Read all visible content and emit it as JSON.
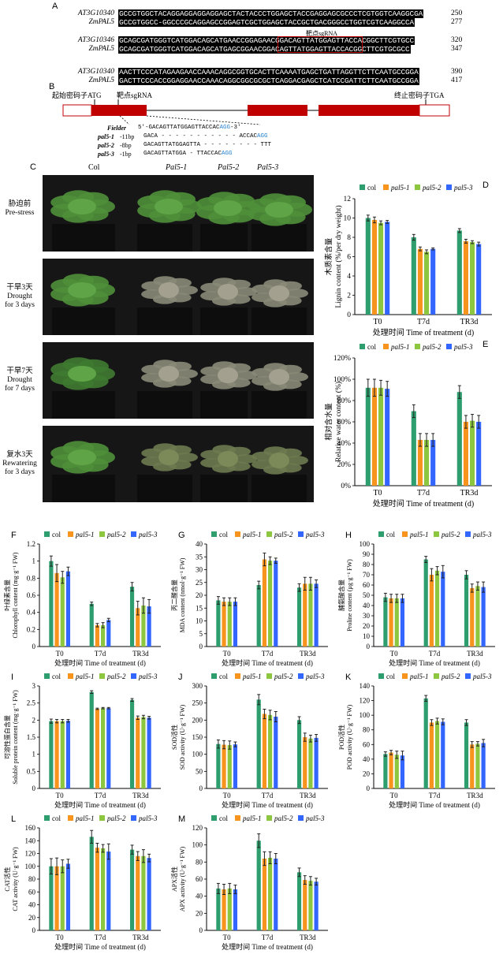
{
  "panelA": {
    "label": "A",
    "blocks": [
      {
        "rows": [
          {
            "gene": "AT3G10340",
            "seq": "GCCGTGGCTACAGGAGGAGGAGGAGCTACTACCCTGGAGCTACCGAGGAGCGCCCTCGTGGTCAAGGCGA",
            "end": "250"
          },
          {
            "gene": "ZmPAL5",
            "seq": "GCCGTGGCC-GGCCCGCAGGAGCCGGAGTCGCTGGAGCTACCGCTGACGGGCCTGGTCGTCAAGGCCA",
            "end": "277"
          }
        ],
        "note": ""
      },
      {
        "rows": [
          {
            "gene": "AT3G10346",
            "seq": "GCAGCGATGGGTCATGGACAGCATGAACCGGAGAACGGACAGTTATGGAGTTACCACGGCTTCGTGCC",
            "end": "320"
          },
          {
            "gene": "ZmPAL5",
            "seq": "GCAGCGATGGGTCATGGACAGCATGAGCGGAACGGACAGTTATGGAGTTACCACGGCTTCGTGCGCC",
            "end": "347"
          }
        ],
        "note": "靶点sgRNA"
      },
      {
        "rows": [
          {
            "gene": "AT3G10340",
            "seq": "AACTTCCCATAGAAGAACCAAACAGGCGGTGCACTTCAAAATGAGCTGATTAGGTTCTTCAATGCCGGA",
            "end": "390"
          },
          {
            "gene": "ZmPAL5",
            "seq": "GACTTCCCACCGGAGGAACCAAACAGGCGGCGCGCTCAGGACGAGCTCATCCGATTCTTCAATGCCGGA",
            "end": "417"
          }
        ],
        "note": ""
      }
    ]
  },
  "panelB": {
    "label": "B",
    "start_codon": "起始密码子ATG",
    "target": "靶点sgRNA",
    "stop_codon": "终止密码子TGA",
    "alleles": [
      {
        "name": "Fielder",
        "del": "",
        "seq": "5'-GACAGTTATGGAGTTACCAC",
        "pam": "AGG",
        "tail": "-3'"
      },
      {
        "name": "pal5-1",
        "del": "-11bp",
        "seq": "GACA - - - - - - - - - - - ACCAC",
        "pam": "AGG",
        "tail": ""
      },
      {
        "name": "pal5-2",
        "del": "-8bp",
        "seq": "GACAGTTATGGAGTTA - - - - - - - - TTT",
        "pam": "",
        "tail": ""
      },
      {
        "name": "pal5-3",
        "del": "-1bp",
        "seq": "GACAGTTATGGA - TTACCAC",
        "pam": "AGG",
        "tail": ""
      }
    ]
  },
  "panelC": {
    "label": "C",
    "genotypes": [
      "Col",
      "Pal5-1",
      "Pal5-2",
      "Pal5-3"
    ],
    "conditions": [
      {
        "cn": "胁迫前",
        "en": "Pre-stress",
        "en2": ""
      },
      {
        "cn": "干旱3天",
        "en": "Drought",
        "en2": "for 3 days"
      },
      {
        "cn": "干旱7天",
        "en": "Drought",
        "en2": "for 7 days"
      },
      {
        "cn": "复水3天",
        "en": "Rewatering",
        "en2": "for 3 days"
      }
    ]
  },
  "colors": {
    "col": "#2e9e6e",
    "pal5_1": "#f7941d",
    "pal5_2": "#8dc63f",
    "pal5_3": "#3366ff",
    "gene_box": "#c00000"
  },
  "chart_data": [
    {
      "panel": "D",
      "type": "bar",
      "categories": [
        "T0",
        "T7d",
        "TR3d"
      ],
      "ylim": [
        0,
        12
      ],
      "ticks": [
        0,
        2,
        4,
        6,
        8,
        10,
        12
      ],
      "ylabel_cn": "木质素含量",
      "ylabel_en": "Lignin content (%/per dry weight)",
      "xlabel": "处理时间 Time of treatment (d)",
      "series": [
        {
          "name": "col",
          "values": [
            10.0,
            8.0,
            8.7
          ],
          "err": [
            0.3,
            0.3,
            0.2
          ]
        },
        {
          "name": "pal5-1",
          "values": [
            9.8,
            6.8,
            7.6
          ],
          "err": [
            0.3,
            0.2,
            0.2
          ]
        },
        {
          "name": "pal5-2",
          "values": [
            9.5,
            6.5,
            7.5
          ],
          "err": [
            0.2,
            0.2,
            0.15
          ]
        },
        {
          "name": "pal5-3",
          "values": [
            9.6,
            6.8,
            7.3
          ],
          "err": [
            0.15,
            0.1,
            0.2
          ]
        }
      ]
    },
    {
      "panel": "E",
      "type": "bar",
      "categories": [
        "T0",
        "T7d",
        "TR3d"
      ],
      "ylim": [
        0,
        120
      ],
      "ticks": [
        0,
        20,
        40,
        60,
        80,
        100,
        120
      ],
      "tick_suffix": "%",
      "ylabel_cn": "相对含水量",
      "ylabel_en": "Relative water content (%)",
      "xlabel": "处理时间 Time of treatment (d)",
      "series": [
        {
          "name": "col",
          "values": [
            92,
            70,
            88
          ],
          "err": [
            8,
            6,
            6
          ]
        },
        {
          "name": "pal5-1",
          "values": [
            92,
            43,
            60
          ],
          "err": [
            8,
            6,
            6
          ]
        },
        {
          "name": "pal5-2",
          "values": [
            92,
            43,
            61
          ],
          "err": [
            7,
            6,
            6
          ]
        },
        {
          "name": "pal5-3",
          "values": [
            91,
            43,
            60
          ],
          "err": [
            7,
            6,
            6
          ]
        }
      ]
    },
    {
      "panel": "F",
      "type": "bar",
      "categories": [
        "T0",
        "T7d",
        "TR3d"
      ],
      "ylim": [
        0,
        1.2
      ],
      "ticks": [
        0,
        0.2,
        0.4,
        0.6,
        0.8,
        1.0,
        1.2
      ],
      "ylabel_cn": "叶绿素含量",
      "ylabel_en": "Chlorophyll content (mg·g⁻¹ FW)",
      "xlabel": "处理时间 Time of treatment (d)",
      "series": [
        {
          "name": "col",
          "values": [
            1.0,
            0.5,
            0.7
          ],
          "err": [
            0.06,
            0.02,
            0.05
          ]
        },
        {
          "name": "pal5-1",
          "values": [
            0.86,
            0.25,
            0.45
          ],
          "err": [
            0.1,
            0.02,
            0.08
          ]
        },
        {
          "name": "pal5-2",
          "values": [
            0.81,
            0.25,
            0.48
          ],
          "err": [
            0.07,
            0.03,
            0.09
          ]
        },
        {
          "name": "pal5-3",
          "values": [
            0.88,
            0.31,
            0.47
          ],
          "err": [
            0.05,
            0.02,
            0.08
          ]
        }
      ]
    },
    {
      "panel": "G",
      "type": "bar",
      "categories": [
        "T0",
        "T7d",
        "TR3d"
      ],
      "ylim": [
        0,
        40
      ],
      "ticks": [
        0,
        5,
        10,
        15,
        20,
        25,
        30,
        35,
        40
      ],
      "ylabel_cn": "丙二醛含量",
      "ylabel_en": "MDA content (nmol·g⁻¹ FW)",
      "xlabel": "处理时间 Time of treatment (d)",
      "series": [
        {
          "name": "col",
          "values": [
            18,
            24,
            23
          ],
          "err": [
            1.5,
            1.5,
            1.5
          ]
        },
        {
          "name": "pal5-1",
          "values": [
            17.5,
            34,
            24.5
          ],
          "err": [
            1.5,
            2.5,
            2.5
          ]
        },
        {
          "name": "pal5-2",
          "values": [
            17.5,
            33.5,
            24.5
          ],
          "err": [
            1.5,
            1.5,
            2.5
          ]
        },
        {
          "name": "pal5-3",
          "values": [
            17.5,
            33.5,
            24.5
          ],
          "err": [
            1.5,
            1,
            1.5
          ]
        }
      ]
    },
    {
      "panel": "H",
      "type": "bar",
      "categories": [
        "T0",
        "T7d",
        "TR3d"
      ],
      "ylim": [
        0,
        100
      ],
      "ticks": [
        0,
        10,
        20,
        30,
        40,
        50,
        60,
        70,
        80,
        90,
        100
      ],
      "ylabel_cn": "脯氨酸含量",
      "ylabel_en": "Proline content (μg·g⁻¹ FW)",
      "xlabel": "处理时间 Time of treatment (d)",
      "series": [
        {
          "name": "col",
          "values": [
            48,
            85,
            70
          ],
          "err": [
            4,
            3,
            4
          ]
        },
        {
          "name": "pal5-1",
          "values": [
            47,
            70,
            57
          ],
          "err": [
            4,
            6,
            4
          ]
        },
        {
          "name": "pal5-2",
          "values": [
            47,
            74,
            59
          ],
          "err": [
            4,
            4,
            4
          ]
        },
        {
          "name": "pal5-3",
          "values": [
            47,
            73,
            58
          ],
          "err": [
            4,
            6,
            5
          ]
        }
      ]
    },
    {
      "panel": "I",
      "type": "bar",
      "categories": [
        "T0",
        "T7d",
        "TR3d"
      ],
      "ylim": [
        0,
        3.0
      ],
      "ticks": [
        0,
        0.5,
        1.0,
        1.5,
        2.0,
        2.5,
        3.0
      ],
      "ylabel_cn": "可溶性蛋白含量",
      "ylabel_en": "Soluble protein content (mg·g⁻¹ FW)",
      "xlabel": "处理时间 Time of treatment (d)",
      "series": [
        {
          "name": "col",
          "values": [
            1.97,
            2.82,
            2.59
          ],
          "err": [
            0.06,
            0.04,
            0.04
          ]
        },
        {
          "name": "pal5-1",
          "values": [
            1.97,
            2.33,
            2.07
          ],
          "err": [
            0.05,
            0.02,
            0.05
          ]
        },
        {
          "name": "pal5-2",
          "values": [
            1.97,
            2.35,
            2.09
          ],
          "err": [
            0.05,
            0.02,
            0.05
          ]
        },
        {
          "name": "pal5-3",
          "values": [
            1.98,
            2.35,
            2.07
          ],
          "err": [
            0.04,
            0.02,
            0.04
          ]
        }
      ]
    },
    {
      "panel": "J",
      "type": "bar",
      "categories": [
        "T0",
        "T7d",
        "TR3d"
      ],
      "ylim": [
        0,
        300
      ],
      "ticks": [
        0,
        50,
        100,
        150,
        200,
        250,
        300
      ],
      "ylabel_cn": "SOD活性",
      "ylabel_en": "SOD activity (U·g⁻¹ FW)",
      "xlabel": "处理时间 Time of treatment (d)",
      "series": [
        {
          "name": "col",
          "values": [
            130,
            260,
            200
          ],
          "err": [
            12,
            15,
            10
          ]
        },
        {
          "name": "pal5-1",
          "values": [
            128,
            218,
            150
          ],
          "err": [
            12,
            14,
            12
          ]
        },
        {
          "name": "pal5-2",
          "values": [
            127,
            215,
            146
          ],
          "err": [
            12,
            14,
            10
          ]
        },
        {
          "name": "pal5-3",
          "values": [
            129,
            210,
            148
          ],
          "err": [
            7,
            15,
            10
          ]
        }
      ]
    },
    {
      "panel": "K",
      "type": "bar",
      "categories": [
        "T0",
        "T7d",
        "TR3d"
      ],
      "ylim": [
        0,
        140
      ],
      "ticks": [
        0,
        20,
        40,
        60,
        80,
        100,
        120,
        140
      ],
      "ylabel_cn": "POD活性",
      "ylabel_en": "POD activity (U·g⁻¹ FW)",
      "xlabel": "处理时间 Time of treatment (d)",
      "series": [
        {
          "name": "col",
          "values": [
            47,
            123,
            90
          ],
          "err": [
            3,
            4,
            4
          ]
        },
        {
          "name": "pal5-1",
          "values": [
            49,
            90,
            60
          ],
          "err": [
            3,
            4,
            4
          ]
        },
        {
          "name": "pal5-2",
          "values": [
            46,
            92,
            61
          ],
          "err": [
            5,
            4,
            3
          ]
        },
        {
          "name": "pal5-3",
          "values": [
            45,
            91,
            62
          ],
          "err": [
            6,
            4,
            5
          ]
        }
      ]
    },
    {
      "panel": "L",
      "type": "bar",
      "categories": [
        "T0",
        "T7d",
        "TR3d"
      ],
      "ylim": [
        0,
        160
      ],
      "ticks": [
        0,
        20,
        40,
        60,
        80,
        100,
        120,
        140,
        160
      ],
      "ylabel_cn": "CAT活性",
      "ylabel_en": "CAT activity (U·g⁻¹ FW)",
      "xlabel": "处理时间 Time of treatment (d)",
      "series": [
        {
          "name": "col",
          "values": [
            100,
            146,
            126
          ],
          "err": [
            12,
            10,
            7
          ]
        },
        {
          "name": "pal5-1",
          "values": [
            100,
            129,
            116
          ],
          "err": [
            13,
            7,
            7
          ]
        },
        {
          "name": "pal5-2",
          "values": [
            100,
            128,
            116
          ],
          "err": [
            10,
            6,
            10
          ]
        },
        {
          "name": "pal5-3",
          "values": [
            104,
            123,
            113
          ],
          "err": [
            7,
            12,
            6
          ]
        }
      ]
    },
    {
      "panel": "M",
      "type": "bar",
      "categories": [
        "T0",
        "T7d",
        "TR3d"
      ],
      "ylim": [
        0,
        120
      ],
      "ticks": [
        0,
        20,
        40,
        60,
        80,
        100,
        120
      ],
      "ylabel_cn": "APX活性",
      "ylabel_en": "APX activity (U·g⁻¹ FW)",
      "xlabel": "处理时间 Time of treatment (d)",
      "series": [
        {
          "name": "col",
          "values": [
            49,
            105,
            68
          ],
          "err": [
            6,
            8,
            5
          ]
        },
        {
          "name": "pal5-1",
          "values": [
            48,
            84,
            59
          ],
          "err": [
            6,
            8,
            5
          ]
        },
        {
          "name": "pal5-2",
          "values": [
            49,
            85,
            58
          ],
          "err": [
            6,
            7,
            5
          ]
        },
        {
          "name": "pal5-3",
          "values": [
            48,
            84,
            57
          ],
          "err": [
            5,
            6,
            4
          ]
        }
      ]
    }
  ]
}
